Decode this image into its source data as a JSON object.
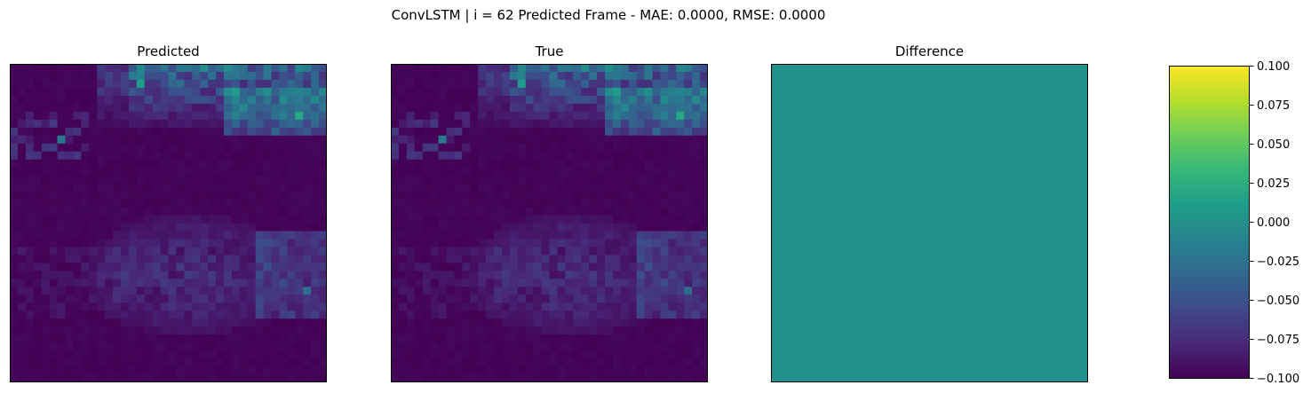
{
  "suptitle": "ConvLSTM | i = 62 Predicted Frame - MAE: 0.0000, RMSE: 0.0000",
  "colormap": "viridis",
  "colors": {
    "viridis_stops": [
      "#440154",
      "#482878",
      "#3e4989",
      "#31688e",
      "#26828e",
      "#1f9e89",
      "#35b779",
      "#6ece58",
      "#b5de2b",
      "#fde725"
    ],
    "difference_fill": "#21918c"
  },
  "chart_data": [
    {
      "type": "heatmap",
      "title": "Predicted",
      "grid_size": [
        40,
        40
      ],
      "axes_ticks": false,
      "value_scale": [
        0,
        1
      ],
      "description_values": "normalized intensity field, bright band along top edge, diffuse patch lower middle"
    },
    {
      "type": "heatmap",
      "title": "True",
      "grid_size": [
        40,
        40
      ],
      "axes_ticks": false,
      "value_scale": [
        0,
        1
      ]
    },
    {
      "type": "heatmap",
      "title": "Difference",
      "grid_size": [
        40,
        40
      ],
      "axes_ticks": false,
      "uniform_value": 0.0
    },
    {
      "type": "colorbar",
      "range": [
        -0.1,
        0.1
      ],
      "ticks": [
        "0.100",
        "0.075",
        "0.050",
        "0.025",
        "0.000",
        "−0.025",
        "−0.050",
        "−0.075",
        "−0.100"
      ],
      "tick_values": [
        0.1,
        0.075,
        0.05,
        0.025,
        0.0,
        -0.025,
        -0.05,
        -0.075,
        -0.1
      ]
    }
  ]
}
